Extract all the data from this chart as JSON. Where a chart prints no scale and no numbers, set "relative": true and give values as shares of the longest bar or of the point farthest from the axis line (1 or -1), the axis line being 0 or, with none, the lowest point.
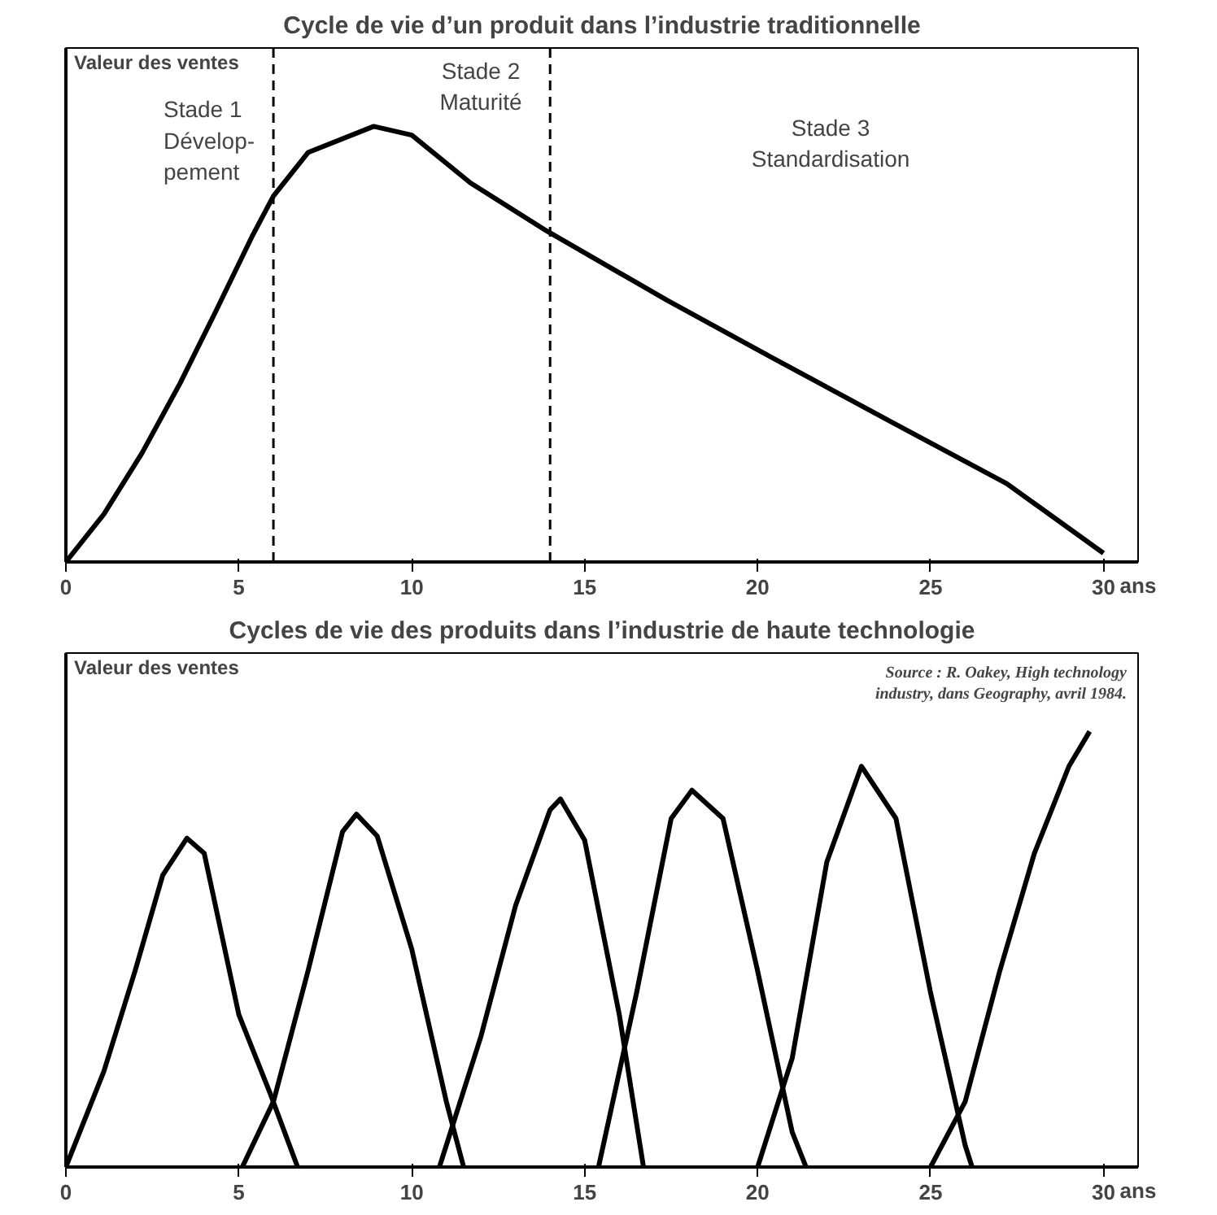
{
  "chart_data": [
    {
      "type": "line",
      "title": "Cycle de vie d’un produit dans l’industrie traditionnelle",
      "ylabel": "Valeur des ventes",
      "xlabel": "ans",
      "relative": true,
      "xlim": [
        0,
        31
      ],
      "xticks": [
        0,
        5,
        10,
        15,
        20,
        25,
        30
      ],
      "grid": false,
      "marker": "none",
      "line_style": "solid",
      "x": [
        0,
        1.1,
        2.2,
        3.3,
        4.3,
        5.4,
        6,
        7,
        8.9,
        10,
        11.7,
        13.9,
        17.4,
        20.4,
        23.9,
        27.2,
        30
      ],
      "series": [
        {
          "color": "#000000",
          "values": [
            0,
            0.11,
            0.25,
            0.41,
            0.57,
            0.75,
            0.84,
            0.94,
            1,
            0.98,
            0.87,
            0.76,
            0.6,
            0.47,
            0.32,
            0.18,
            0.02
          ]
        }
      ],
      "ref_lines": [
        {
          "axis": "x",
          "value": 6,
          "line_style": "dashed"
        },
        {
          "axis": "x",
          "value": 14,
          "line_style": "dashed"
        }
      ],
      "annotations": [
        "Stade 1\nDévelop-\npement",
        "Stade 2\nMaturité",
        "Stade 3\nStandardisation"
      ]
    },
    {
      "type": "line",
      "title": "Cycles de vie des produits dans l’industrie de haute technologie",
      "ylabel": "Valeur des ventes",
      "xlabel": "ans",
      "relative": true,
      "xlim": [
        0,
        31
      ],
      "xticks": [
        0,
        5,
        10,
        15,
        20,
        25,
        30
      ],
      "grid": false,
      "marker": "none",
      "line_style": "solid",
      "series": [
        {
          "color": "#000000",
          "x": [
            0,
            1.1,
            2,
            2.8,
            3.5,
            4,
            5,
            5.9,
            6.7
          ],
          "values": [
            0,
            0.22,
            0.45,
            0.67,
            0.755,
            0.72,
            0.35,
            0.17,
            0
          ]
        },
        {
          "color": "#000000",
          "x": [
            5.1,
            6,
            7,
            8,
            8.4,
            9,
            10,
            11,
            11.5
          ],
          "values": [
            0,
            0.15,
            0.45,
            0.77,
            0.81,
            0.76,
            0.5,
            0.15,
            0
          ]
        },
        {
          "color": "#000000",
          "x": [
            10.8,
            12,
            13,
            14,
            14.3,
            15,
            16,
            16.7
          ],
          "values": [
            0,
            0.3,
            0.6,
            0.82,
            0.845,
            0.75,
            0.35,
            0
          ]
        },
        {
          "color": "#000000",
          "x": [
            15.4,
            16.5,
            17.5,
            18.1,
            19,
            20,
            21,
            21.4
          ],
          "values": [
            0,
            0.4,
            0.8,
            0.865,
            0.8,
            0.45,
            0.08,
            0
          ]
        },
        {
          "color": "#000000",
          "x": [
            20,
            21,
            22,
            23,
            24,
            25,
            26,
            26.2
          ],
          "values": [
            0,
            0.25,
            0.7,
            0.92,
            0.8,
            0.4,
            0.05,
            0
          ]
        },
        {
          "color": "#000000",
          "x": [
            25,
            26,
            27,
            28,
            29,
            29.6
          ],
          "values": [
            0,
            0.15,
            0.45,
            0.72,
            0.92,
            1
          ]
        }
      ],
      "annotations": [
        "Source : R. Oakey, High technology\nindustry, dans Geography, avril 1984."
      ]
    }
  ]
}
